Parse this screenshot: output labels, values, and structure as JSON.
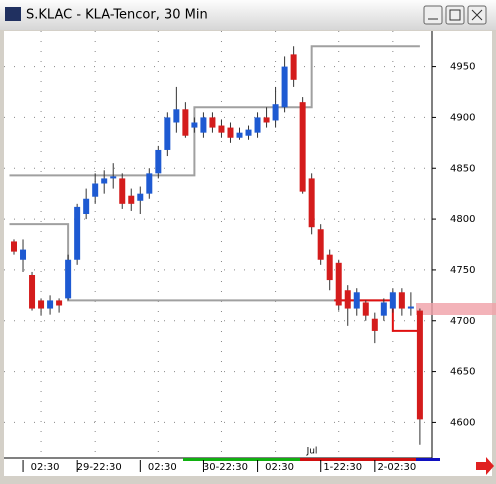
{
  "chart_data": {
    "type": "candlestick",
    "title": "S.KLAC - KLA-Tencor, 30 Min",
    "annotation": "Jul",
    "categories": [
      null,
      null,
      null,
      "02:30",
      null,
      null,
      null,
      null,
      null,
      "29-22:30",
      null,
      null,
      null,
      null,
      null,
      null,
      "02:30",
      null,
      null,
      null,
      null,
      null,
      null,
      "30-22:30",
      null,
      null,
      null,
      null,
      null,
      "02:30",
      null,
      null,
      null,
      null,
      null,
      null,
      "1-22:30",
      null,
      null,
      null,
      null,
      null,
      "2-02:30",
      null,
      null,
      null
    ],
    "open": [
      4778,
      4760,
      4745,
      4720,
      4712,
      4720,
      4722,
      4760,
      4805,
      4822,
      4835,
      4840,
      4840,
      4823,
      4818,
      4825,
      4845,
      4868,
      4895,
      4908,
      4890,
      4885,
      4900,
      4892,
      4890,
      4880,
      4882,
      4885,
      4900,
      4897,
      4910,
      4962,
      4915,
      4840,
      4790,
      4765,
      4757,
      4730,
      4712,
      4718,
      4702,
      4705,
      4712,
      4728,
      4712,
      4710
    ],
    "high": [
      4780,
      4780,
      4748,
      4722,
      4725,
      4722,
      4765,
      4815,
      4830,
      4845,
      4848,
      4855,
      4845,
      4830,
      4832,
      4850,
      4872,
      4905,
      4930,
      4915,
      4900,
      4905,
      4905,
      4898,
      4895,
      4890,
      4892,
      4905,
      4910,
      4930,
      4960,
      4970,
      4920,
      4845,
      4795,
      4770,
      4760,
      4735,
      4732,
      4720,
      4708,
      4722,
      4732,
      4732,
      4728,
      4712
    ],
    "low": [
      4765,
      4748,
      4710,
      4705,
      4706,
      4708,
      4720,
      4755,
      4800,
      4815,
      4825,
      4830,
      4810,
      4808,
      4805,
      4820,
      4840,
      4862,
      4885,
      4880,
      4885,
      4880,
      4885,
      4880,
      4875,
      4878,
      4878,
      4880,
      4890,
      4890,
      4905,
      4930,
      4825,
      4785,
      4755,
      4730,
      4710,
      4695,
      4705,
      4700,
      4678,
      4700,
      4708,
      4705,
      4705,
      4578
    ],
    "close": [
      4768,
      4770,
      4712,
      4712,
      4720,
      4715,
      4760,
      4812,
      4820,
      4835,
      4840,
      4842,
      4815,
      4815,
      4825,
      4845,
      4868,
      4900,
      4908,
      4882,
      4895,
      4900,
      4890,
      4885,
      4880,
      4885,
      4888,
      4900,
      4895,
      4913,
      4950,
      4937,
      4827,
      4792,
      4760,
      4740,
      4715,
      4712,
      4728,
      4705,
      4690,
      4718,
      4728,
      4712,
      4714,
      4603
    ],
    "up_color": "#1e5ad2",
    "down_color": "#d41c1c",
    "lines": [
      {
        "color": "#a0a0a0",
        "values": [
          4843,
          4843,
          4843,
          4843,
          4843,
          4843,
          4843,
          4843,
          4843,
          4843,
          4843,
          4843,
          4843,
          4843,
          4843,
          4843,
          4843,
          4843,
          4843,
          4843,
          4910,
          4910,
          4910,
          4910,
          4910,
          4910,
          4910,
          4910,
          4910,
          4910,
          4910,
          4910,
          4910,
          4970,
          4970,
          4970,
          4970,
          4970,
          4970,
          4970,
          4970,
          4970,
          4970,
          4970,
          4970,
          4970
        ]
      },
      {
        "color": "#a0a0a0",
        "values": [
          4795,
          4795,
          4795,
          4795,
          4795,
          4795,
          4720,
          4720,
          4720,
          4720,
          4720,
          4720,
          4720,
          4720,
          4720,
          4720,
          4720,
          4720,
          4720,
          4720,
          4720,
          4720,
          4720,
          4720,
          4720,
          4720,
          4720,
          4720,
          4720,
          4720,
          4720,
          4720,
          4720,
          4720,
          4720,
          4720,
          4720,
          4720,
          4720,
          4720,
          4720,
          4720,
          null,
          null,
          null,
          null
        ]
      },
      {
        "color": "#e01010",
        "values": [
          null,
          null,
          null,
          null,
          null,
          null,
          null,
          null,
          null,
          null,
          null,
          null,
          null,
          null,
          null,
          null,
          null,
          null,
          null,
          null,
          null,
          null,
          null,
          null,
          null,
          null,
          null,
          null,
          null,
          null,
          null,
          null,
          null,
          null,
          null,
          null,
          4720,
          4720,
          4720,
          4720,
          4720,
          4720,
          4690,
          4690,
          4690,
          4690
        ]
      }
    ],
    "ylim": [
      4565,
      4985
    ],
    "yticks": [
      4600,
      4650,
      4700,
      4750,
      4800,
      4850,
      4900,
      4950
    ],
    "grid": true
  }
}
